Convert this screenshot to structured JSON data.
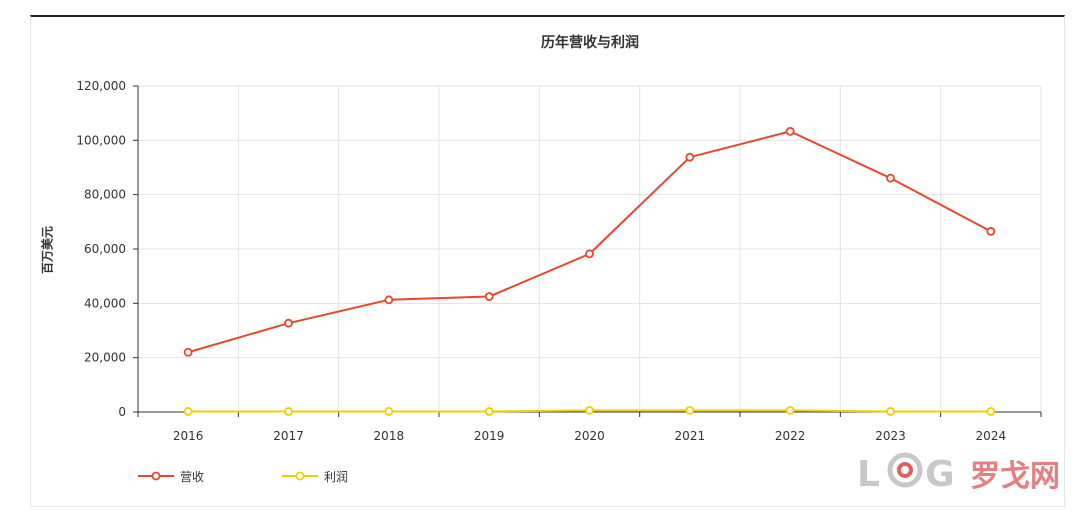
{
  "chart_data": {
    "type": "line",
    "title": "历年营收与利润",
    "ylabel": "百万美元",
    "xlabel": "",
    "categories": [
      "2016",
      "2017",
      "2018",
      "2019",
      "2020",
      "2021",
      "2022",
      "2023",
      "2024"
    ],
    "ylim": [
      0,
      120000
    ],
    "yticks": [
      "0",
      "20,000",
      "40,000",
      "60,000",
      "80,000",
      "100,000",
      "120,000"
    ],
    "grid": true,
    "legend": "bottom-left",
    "series": [
      {
        "name": "营收",
        "color": "#e8472e",
        "values": [
          22000,
          32700,
          41300,
          42500,
          58200,
          93800,
          103300,
          86100,
          66500
        ]
      },
      {
        "name": "利润",
        "color": "#f2cf00",
        "values": [
          200,
          200,
          200,
          200,
          600,
          600,
          600,
          200,
          200
        ]
      }
    ]
  },
  "watermark": {
    "text": "罗戈网",
    "logo": "LOG"
  }
}
